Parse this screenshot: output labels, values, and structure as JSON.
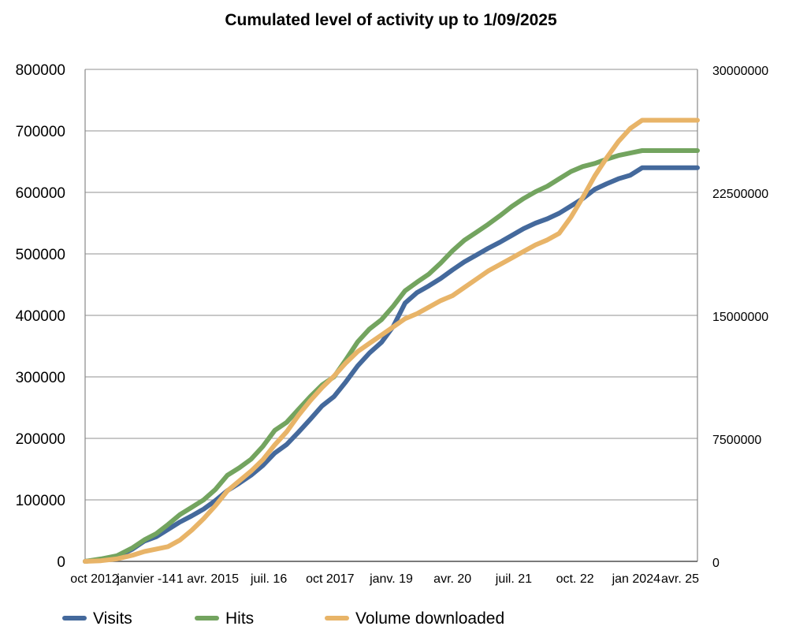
{
  "chart_data": {
    "type": "line",
    "title": "Cumulated level of activity up to 1/09/2025",
    "xlabel": "",
    "ylabel": "",
    "x_tick_labels": [
      "oct 2012",
      "janvier -14",
      "1 avr. 2015",
      "juil. 16",
      "oct 2017",
      "janv. 19",
      "avr. 20",
      "juil. 21",
      "oct. 22",
      "jan 2024",
      "avr. 25"
    ],
    "x_domain": [
      "2012-10",
      "2025-09"
    ],
    "ylim_left": [
      0,
      800000
    ],
    "yticks_left": [
      0,
      100000,
      200000,
      300000,
      400000,
      500000,
      600000,
      700000,
      800000
    ],
    "ylim_right": [
      0,
      30000000
    ],
    "yticks_right": [
      0,
      7500000,
      15000000,
      22500000,
      30000000
    ],
    "grid": "horizontal",
    "legend_position": "bottom",
    "series": [
      {
        "name": "Visits",
        "axis": "left",
        "color": "#44699c",
        "points": [
          [
            "2012-10",
            0
          ],
          [
            "2013-02",
            3000
          ],
          [
            "2013-06",
            7000
          ],
          [
            "2013-10",
            20000
          ],
          [
            "2014-01",
            33000
          ],
          [
            "2014-04",
            40000
          ],
          [
            "2014-07",
            52000
          ],
          [
            "2014-10",
            64000
          ],
          [
            "2015-01",
            74000
          ],
          [
            "2015-04",
            85000
          ],
          [
            "2015-07",
            99000
          ],
          [
            "2015-10",
            115000
          ],
          [
            "2016-01",
            127000
          ],
          [
            "2016-04",
            140000
          ],
          [
            "2016-07",
            156000
          ],
          [
            "2016-10",
            176000
          ],
          [
            "2017-01",
            190000
          ],
          [
            "2017-04",
            210000
          ],
          [
            "2017-07",
            231000
          ],
          [
            "2017-10",
            253000
          ],
          [
            "2018-01",
            268000
          ],
          [
            "2018-04",
            292000
          ],
          [
            "2018-07",
            318000
          ],
          [
            "2018-10",
            339000
          ],
          [
            "2019-01",
            356000
          ],
          [
            "2019-04",
            382000
          ],
          [
            "2019-07",
            420000
          ],
          [
            "2019-10",
            437000
          ],
          [
            "2020-01",
            448000
          ],
          [
            "2020-04",
            460000
          ],
          [
            "2020-07",
            474000
          ],
          [
            "2020-10",
            487000
          ],
          [
            "2021-01",
            498000
          ],
          [
            "2021-04",
            509000
          ],
          [
            "2021-07",
            519000
          ],
          [
            "2021-10",
            530000
          ],
          [
            "2022-01",
            541000
          ],
          [
            "2022-04",
            550000
          ],
          [
            "2022-07",
            557000
          ],
          [
            "2022-10",
            566000
          ],
          [
            "2023-01",
            578000
          ],
          [
            "2023-04",
            590000
          ],
          [
            "2023-07",
            605000
          ],
          [
            "2023-10",
            614000
          ],
          [
            "2024-01",
            622000
          ],
          [
            "2024-04",
            628000
          ],
          [
            "2024-07",
            640000
          ],
          [
            "2024-10",
            640000
          ],
          [
            "2025-01",
            640000
          ],
          [
            "2025-09",
            640000
          ]
        ]
      },
      {
        "name": "Hits",
        "axis": "left",
        "color": "#73a45f",
        "points": [
          [
            "2012-10",
            0
          ],
          [
            "2013-02",
            4000
          ],
          [
            "2013-06",
            9000
          ],
          [
            "2013-10",
            22000
          ],
          [
            "2014-01",
            35000
          ],
          [
            "2014-04",
            45000
          ],
          [
            "2014-07",
            60000
          ],
          [
            "2014-10",
            76000
          ],
          [
            "2015-01",
            88000
          ],
          [
            "2015-04",
            100000
          ],
          [
            "2015-07",
            117000
          ],
          [
            "2015-10",
            140000
          ],
          [
            "2016-01",
            152000
          ],
          [
            "2016-04",
            166000
          ],
          [
            "2016-07",
            187000
          ],
          [
            "2016-10",
            213000
          ],
          [
            "2017-01",
            226000
          ],
          [
            "2017-04",
            247000
          ],
          [
            "2017-07",
            268000
          ],
          [
            "2017-10",
            287000
          ],
          [
            "2018-01",
            300000
          ],
          [
            "2018-04",
            328000
          ],
          [
            "2018-07",
            357000
          ],
          [
            "2018-10",
            378000
          ],
          [
            "2019-01",
            393000
          ],
          [
            "2019-04",
            415000
          ],
          [
            "2019-07",
            440000
          ],
          [
            "2019-10",
            454000
          ],
          [
            "2020-01",
            467000
          ],
          [
            "2020-04",
            485000
          ],
          [
            "2020-07",
            505000
          ],
          [
            "2020-10",
            522000
          ],
          [
            "2021-01",
            535000
          ],
          [
            "2021-04",
            548000
          ],
          [
            "2021-07",
            562000
          ],
          [
            "2021-10",
            577000
          ],
          [
            "2022-01",
            590000
          ],
          [
            "2022-04",
            601000
          ],
          [
            "2022-07",
            610000
          ],
          [
            "2022-10",
            622000
          ],
          [
            "2023-01",
            634000
          ],
          [
            "2023-04",
            642000
          ],
          [
            "2023-07",
            647000
          ],
          [
            "2023-10",
            654000
          ],
          [
            "2024-01",
            660000
          ],
          [
            "2024-04",
            664000
          ],
          [
            "2024-07",
            668000
          ],
          [
            "2024-10",
            668000
          ],
          [
            "2025-01",
            668000
          ],
          [
            "2025-09",
            668000
          ]
        ]
      },
      {
        "name": "Volume downloaded",
        "axis": "right",
        "color": "#e8b468",
        "points": [
          [
            "2012-10",
            0
          ],
          [
            "2013-02",
            40000
          ],
          [
            "2013-06",
            150000
          ],
          [
            "2013-10",
            375000
          ],
          [
            "2014-01",
            600000
          ],
          [
            "2014-04",
            750000
          ],
          [
            "2014-07",
            900000
          ],
          [
            "2014-10",
            1300000
          ],
          [
            "2015-01",
            1900000
          ],
          [
            "2015-04",
            2600000
          ],
          [
            "2015-07",
            3400000
          ],
          [
            "2015-10",
            4300000
          ],
          [
            "2016-01",
            4900000
          ],
          [
            "2016-04",
            5500000
          ],
          [
            "2016-07",
            6200000
          ],
          [
            "2016-10",
            7100000
          ],
          [
            "2017-01",
            7900000
          ],
          [
            "2017-04",
            8900000
          ],
          [
            "2017-07",
            9800000
          ],
          [
            "2017-10",
            10600000
          ],
          [
            "2018-01",
            11300000
          ],
          [
            "2018-04",
            12100000
          ],
          [
            "2018-07",
            12800000
          ],
          [
            "2018-10",
            13300000
          ],
          [
            "2019-01",
            13800000
          ],
          [
            "2019-04",
            14300000
          ],
          [
            "2019-07",
            14800000
          ],
          [
            "2019-10",
            15100000
          ],
          [
            "2020-01",
            15500000
          ],
          [
            "2020-04",
            15900000
          ],
          [
            "2020-07",
            16200000
          ],
          [
            "2020-10",
            16700000
          ],
          [
            "2021-01",
            17200000
          ],
          [
            "2021-04",
            17700000
          ],
          [
            "2021-07",
            18100000
          ],
          [
            "2021-10",
            18500000
          ],
          [
            "2022-01",
            18900000
          ],
          [
            "2022-04",
            19300000
          ],
          [
            "2022-07",
            19600000
          ],
          [
            "2022-10",
            20000000
          ],
          [
            "2023-01",
            21000000
          ],
          [
            "2023-04",
            22200000
          ],
          [
            "2023-07",
            23500000
          ],
          [
            "2023-10",
            24600000
          ],
          [
            "2024-01",
            25600000
          ],
          [
            "2024-04",
            26400000
          ],
          [
            "2024-07",
            26900000
          ],
          [
            "2024-10",
            26900000
          ],
          [
            "2025-01",
            26900000
          ],
          [
            "2025-09",
            26900000
          ]
        ]
      }
    ]
  }
}
